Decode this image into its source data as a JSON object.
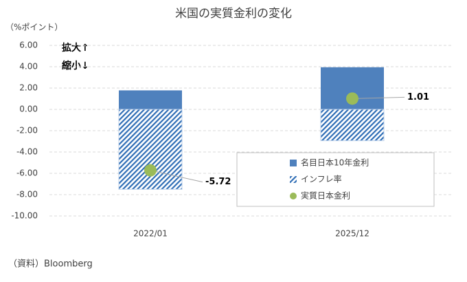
{
  "chart_data": {
    "type": "bar",
    "stacked": true,
    "title": "米国の実質金利の変化",
    "y_label": "（%ポイント）",
    "annotations": [
      "拡大↑",
      "縮小↓"
    ],
    "source": "（資料）Bloomberg",
    "categories": [
      "2022/01",
      "2025/12"
    ],
    "series": [
      {
        "name": "名目日本10年金利",
        "color": "#4f81bd",
        "values": [
          1.78,
          3.95
        ]
      },
      {
        "name": "インフレ率",
        "color": "#2e6db5",
        "hatch": true,
        "values": [
          -7.5,
          -2.94
        ]
      },
      {
        "name": "実質日本金利",
        "color": "#9bbb59",
        "type": "scatter",
        "values": [
          -5.72,
          1.01
        ]
      }
    ],
    "ylim": [
      -10,
      6
    ],
    "yticks": [
      {
        "value": 6,
        "label": "6.00"
      },
      {
        "value": 4,
        "label": "4.00"
      },
      {
        "value": 2,
        "label": "2.00"
      },
      {
        "value": 0,
        "label": "0.00"
      },
      {
        "value": -2,
        "label": "-2.00"
      },
      {
        "value": -4,
        "label": "-4.00"
      },
      {
        "value": -6,
        "label": "-6.00"
      },
      {
        "value": -8,
        "label": "-8.00"
      },
      {
        "value": -10,
        "label": "-10.00"
      }
    ],
    "grid": true
  }
}
